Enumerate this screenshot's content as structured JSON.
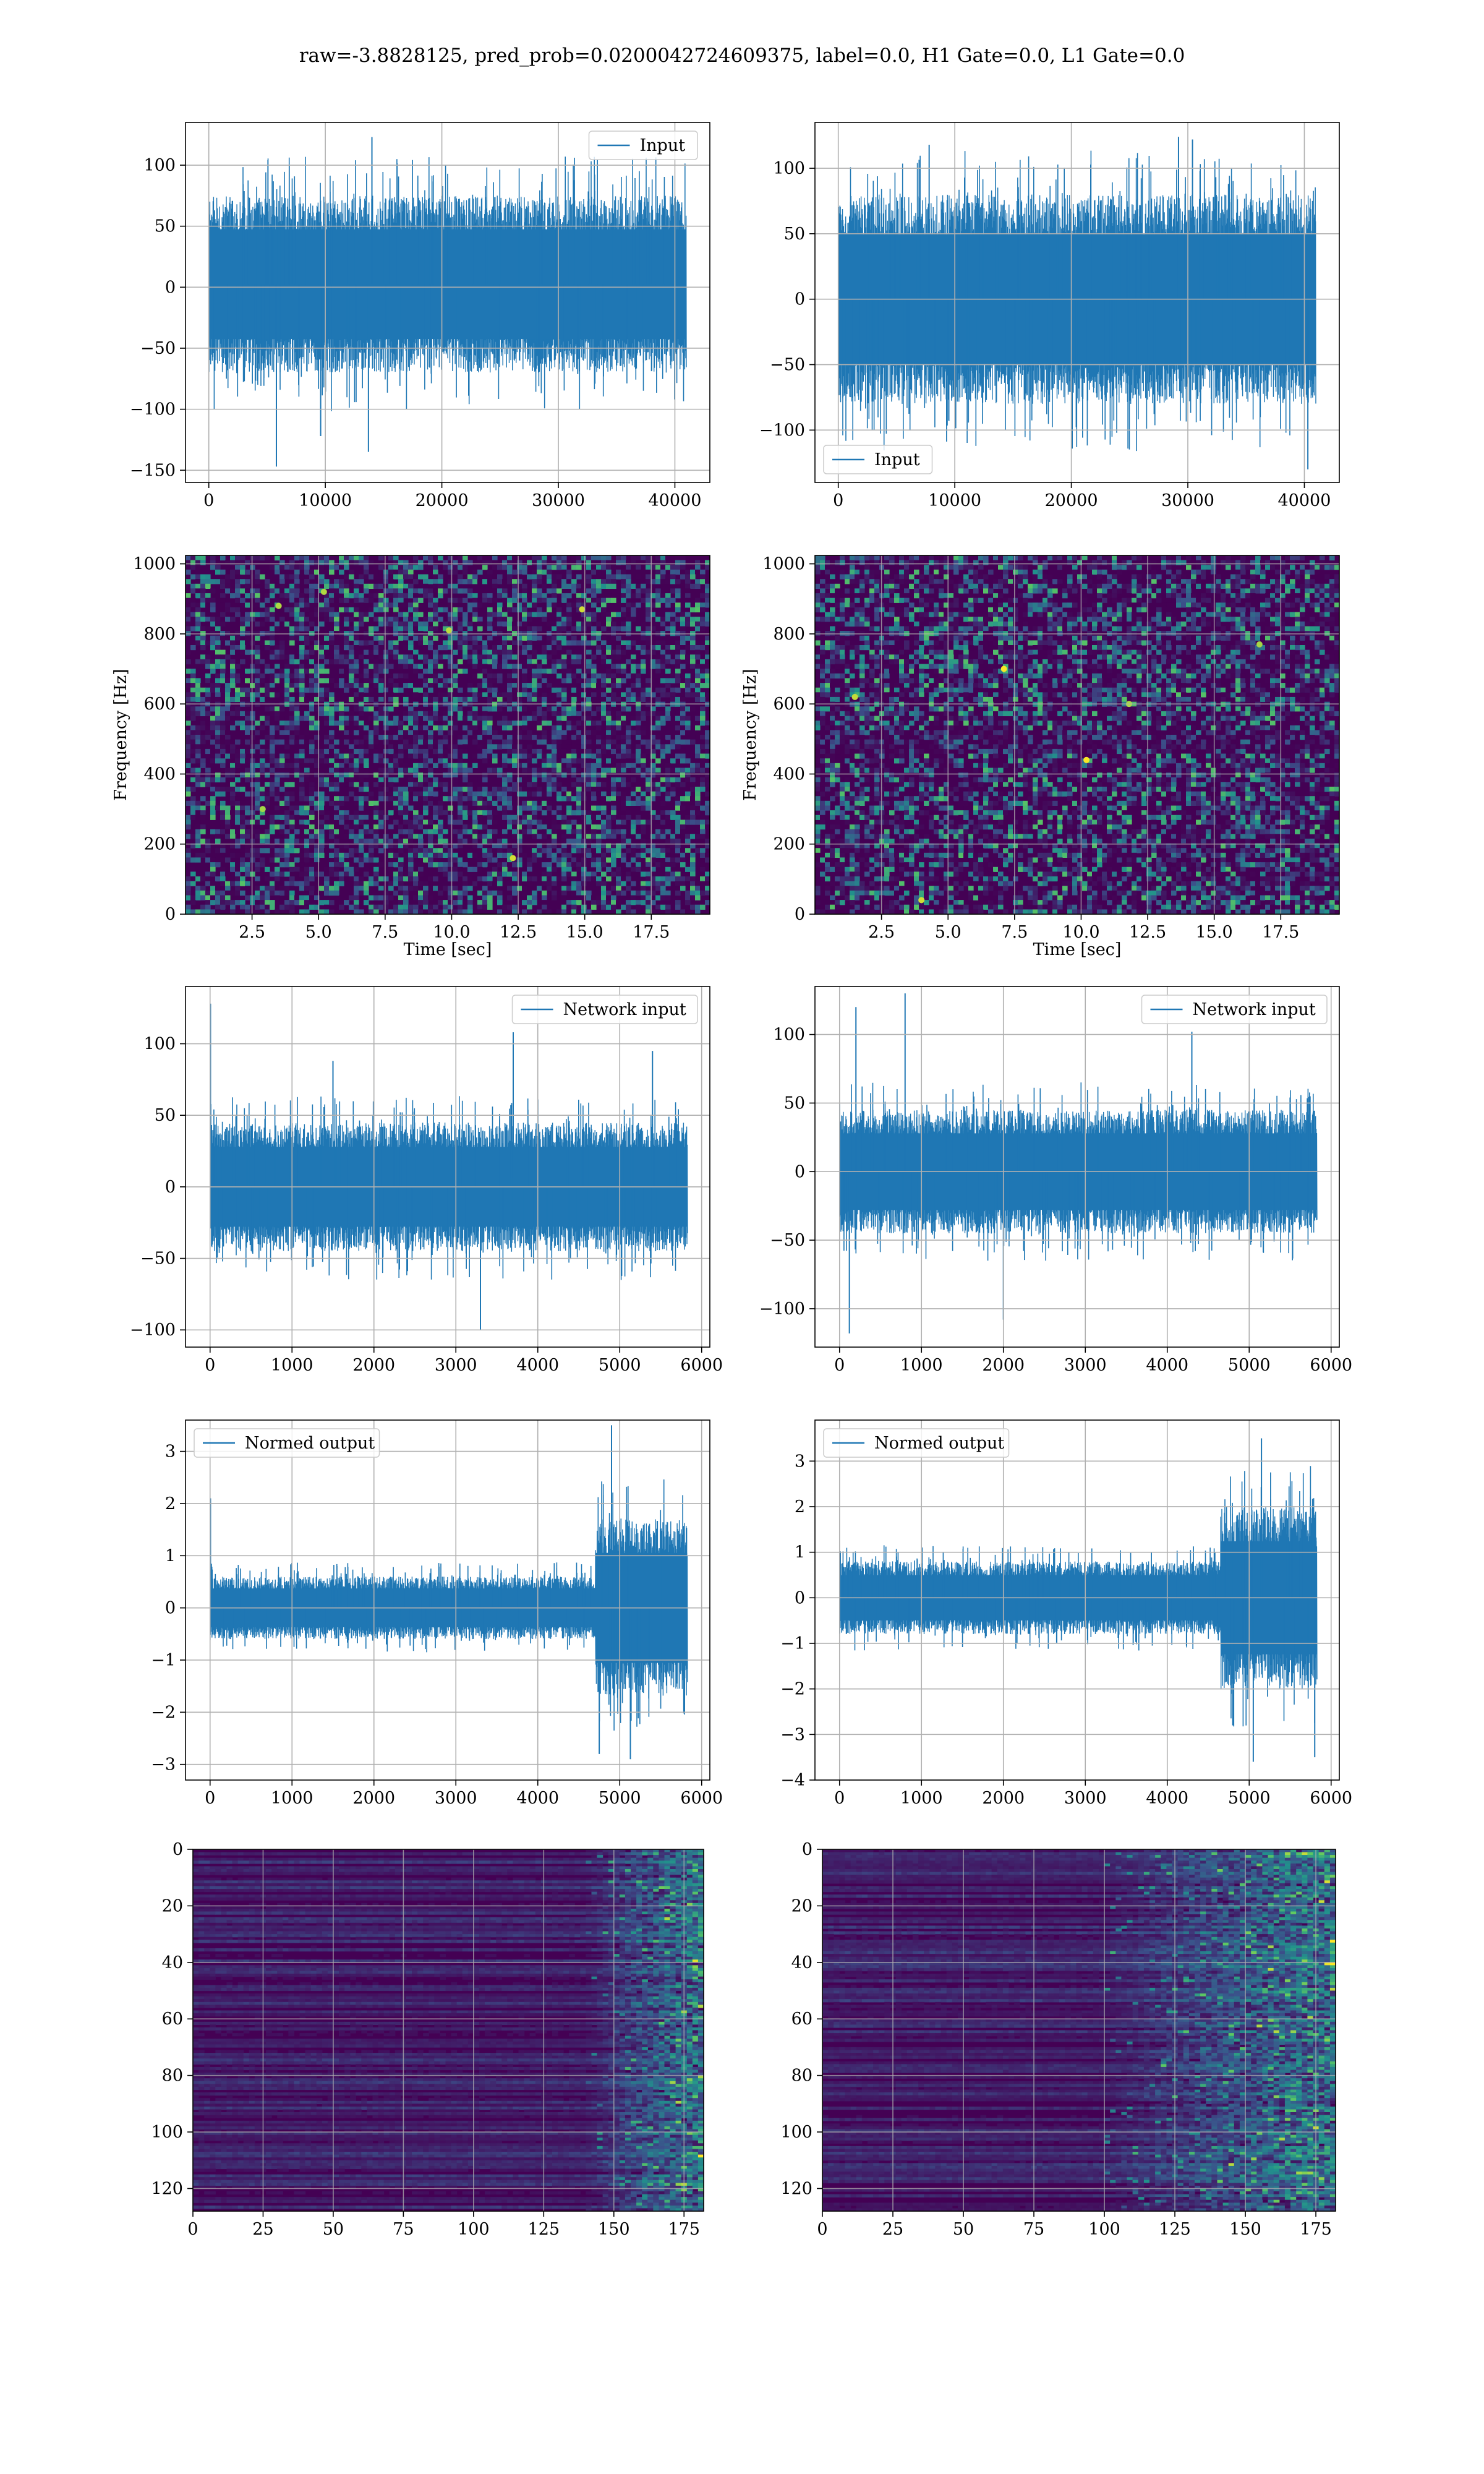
{
  "title": "raw=-3.8828125, pred_prob=0.0200042724609375, label=0.0, H1 Gate=0.0, L1 Gate=0.0",
  "colors": {
    "line": "#1f77b4",
    "grid": "#b0b0b0",
    "viridis_low": "#440154",
    "viridis_mid": "#21918c",
    "viridis_high": "#fde725"
  },
  "chart_data": [
    {
      "id": "p00",
      "type": "line",
      "title": "",
      "xlabel": "",
      "ylabel": "",
      "xlim": [
        -2000,
        43000
      ],
      "ylim": [
        -160,
        135
      ],
      "xticks": [
        0,
        10000,
        20000,
        30000,
        40000
      ],
      "yticks": [
        -150,
        -100,
        -50,
        0,
        50,
        100
      ],
      "xtick_labels": [
        "0",
        "10000",
        "20000",
        "30000",
        "40000"
      ],
      "ytick_labels": [
        "−150",
        "−100",
        "−50",
        "0",
        "50",
        "100"
      ],
      "legend": {
        "label": "Input",
        "loc": "upper right"
      },
      "series": [
        {
          "name": "Input",
          "n_samples": 40960,
          "x_range": [
            0,
            40960
          ],
          "typical_band": [
            -70,
            75
          ],
          "peak_max": 123,
          "peak_min": -147,
          "spikes": [
            [
              14000,
              123
            ],
            [
              5800,
              -147
            ],
            [
              13700,
              -135
            ],
            [
              9600,
              -122
            ]
          ]
        }
      ],
      "grid": true
    },
    {
      "id": "p01",
      "type": "line",
      "title": "",
      "xlabel": "",
      "ylabel": "",
      "xlim": [
        -2000,
        43000
      ],
      "ylim": [
        -140,
        135
      ],
      "xticks": [
        0,
        10000,
        20000,
        30000,
        40000
      ],
      "yticks": [
        -100,
        -50,
        0,
        50,
        100
      ],
      "xtick_labels": [
        "0",
        "10000",
        "20000",
        "30000",
        "40000"
      ],
      "ytick_labels": [
        "−100",
        "−50",
        "0",
        "50",
        "100"
      ],
      "legend": {
        "label": "Input",
        "loc": "lower left"
      },
      "series": [
        {
          "name": "Input",
          "n_samples": 40960,
          "x_range": [
            0,
            40960
          ],
          "typical_band": [
            -80,
            80
          ],
          "peak_max": 124,
          "peak_min": -130,
          "spikes": [
            [
              29200,
              124
            ],
            [
              30400,
              122
            ],
            [
              40300,
              -130
            ],
            [
              7800,
              118
            ]
          ]
        }
      ],
      "grid": true
    },
    {
      "id": "p10",
      "type": "heatmap",
      "title": "",
      "xlabel": "Time [sec]",
      "ylabel": "Frequency [Hz]",
      "xlim": [
        0,
        19.7
      ],
      "ylim": [
        0,
        1024
      ],
      "xticks": [
        2.5,
        5.0,
        7.5,
        10.0,
        12.5,
        15.0,
        17.5
      ],
      "yticks": [
        0,
        200,
        400,
        600,
        800,
        1000
      ],
      "xtick_labels": [
        "2.5",
        "5.0",
        "7.5",
        "10.0",
        "12.5",
        "15.0",
        "17.5"
      ],
      "ytick_labels": [
        "0",
        "200",
        "400",
        "600",
        "800",
        "1000"
      ],
      "colormap": "viridis",
      "grid": true,
      "hot_spots": [
        [
          3.5,
          880
        ],
        [
          14.9,
          870
        ],
        [
          5.2,
          920
        ],
        [
          12.3,
          160
        ],
        [
          2.9,
          300
        ],
        [
          9.9,
          810
        ]
      ]
    },
    {
      "id": "p11",
      "type": "heatmap",
      "title": "",
      "xlabel": "Time [sec]",
      "ylabel": "Frequency [Hz]",
      "xlim": [
        0,
        19.7
      ],
      "ylim": [
        0,
        1024
      ],
      "xticks": [
        2.5,
        5.0,
        7.5,
        10.0,
        12.5,
        15.0,
        17.5
      ],
      "yticks": [
        0,
        200,
        400,
        600,
        800,
        1000
      ],
      "xtick_labels": [
        "2.5",
        "5.0",
        "7.5",
        "10.0",
        "12.5",
        "15.0",
        "17.5"
      ],
      "ytick_labels": [
        "0",
        "200",
        "400",
        "600",
        "800",
        "1000"
      ],
      "colormap": "viridis",
      "grid": true,
      "hot_spots": [
        [
          16.7,
          770
        ],
        [
          11.8,
          600
        ],
        [
          7.1,
          700
        ],
        [
          1.5,
          620
        ],
        [
          4.0,
          40
        ],
        [
          10.2,
          440
        ]
      ]
    },
    {
      "id": "p20",
      "type": "line",
      "title": "",
      "xlabel": "",
      "ylabel": "",
      "xlim": [
        -300,
        6100
      ],
      "ylim": [
        -112,
        140
      ],
      "xticks": [
        0,
        1000,
        2000,
        3000,
        4000,
        5000,
        6000
      ],
      "yticks": [
        -100,
        -50,
        0,
        50,
        100
      ],
      "xtick_labels": [
        "0",
        "1000",
        "2000",
        "3000",
        "4000",
        "5000",
        "6000"
      ],
      "ytick_labels": [
        "−100",
        "−50",
        "0",
        "50",
        "100"
      ],
      "legend": {
        "label": "Network input",
        "loc": "upper right"
      },
      "series": [
        {
          "name": "Network input",
          "n_samples": 5824,
          "x_range": [
            0,
            5824
          ],
          "typical_band": [
            -45,
            45
          ],
          "peak_max": 128,
          "peak_min": -100,
          "spikes": [
            [
              5,
              128
            ],
            [
              3700,
              108
            ],
            [
              3300,
              -100
            ],
            [
              5400,
              95
            ],
            [
              1500,
              88
            ]
          ]
        }
      ],
      "grid": true
    },
    {
      "id": "p21",
      "type": "line",
      "title": "",
      "xlabel": "",
      "ylabel": "",
      "xlim": [
        -300,
        6100
      ],
      "ylim": [
        -128,
        135
      ],
      "xticks": [
        0,
        1000,
        2000,
        3000,
        4000,
        5000,
        6000
      ],
      "yticks": [
        -100,
        -50,
        0,
        50,
        100
      ],
      "xtick_labels": [
        "0",
        "1000",
        "2000",
        "3000",
        "4000",
        "5000",
        "6000"
      ],
      "ytick_labels": [
        "−100",
        "−50",
        "0",
        "50",
        "100"
      ],
      "legend": {
        "label": "Network input",
        "loc": "upper right"
      },
      "series": [
        {
          "name": "Network input",
          "n_samples": 5824,
          "x_range": [
            0,
            5824
          ],
          "typical_band": [
            -45,
            45
          ],
          "peak_max": 130,
          "peak_min": -120,
          "spikes": [
            [
              800,
              130
            ],
            [
              200,
              120
            ],
            [
              120,
              -118
            ],
            [
              2000,
              -108
            ],
            [
              4300,
              102
            ]
          ]
        }
      ],
      "grid": true
    },
    {
      "id": "p30",
      "type": "line",
      "title": "",
      "xlabel": "",
      "ylabel": "",
      "xlim": [
        -300,
        6100
      ],
      "ylim": [
        -3.3,
        3.6
      ],
      "xticks": [
        0,
        1000,
        2000,
        3000,
        4000,
        5000,
        6000
      ],
      "yticks": [
        -3,
        -2,
        -1,
        0,
        1,
        2,
        3
      ],
      "xtick_labels": [
        "0",
        "1000",
        "2000",
        "3000",
        "4000",
        "5000",
        "6000"
      ],
      "ytick_labels": [
        "−3",
        "−2",
        "−1",
        "0",
        "1",
        "2",
        "3"
      ],
      "legend": {
        "label": "Normed output",
        "loc": "upper left"
      },
      "series": [
        {
          "name": "Normed output",
          "n_samples": 5824,
          "x_range": [
            0,
            5824
          ],
          "typical_band": [
            -0.6,
            0.6
          ],
          "burst_start": 4700,
          "burst_band": [
            -1.6,
            1.8
          ],
          "peak_max": 3.5,
          "peak_min": -2.9,
          "spikes": [
            [
              5,
              2.1
            ],
            [
              4900,
              3.5
            ],
            [
              5130,
              -2.9
            ],
            [
              4750,
              -2.8
            ]
          ]
        }
      ],
      "grid": true
    },
    {
      "id": "p31",
      "type": "line",
      "title": "",
      "xlabel": "",
      "ylabel": "",
      "xlim": [
        -300,
        6100
      ],
      "ylim": [
        -4.0,
        3.9
      ],
      "xticks": [
        0,
        1000,
        2000,
        3000,
        4000,
        5000,
        6000
      ],
      "yticks": [
        -4,
        -3,
        -2,
        -1,
        0,
        1,
        2,
        3
      ],
      "xtick_labels": [
        "0",
        "1000",
        "2000",
        "3000",
        "4000",
        "5000",
        "6000"
      ],
      "ytick_labels": [
        "−4",
        "−3",
        "−2",
        "−1",
        "0",
        "1",
        "2",
        "3"
      ],
      "legend": {
        "label": "Normed output",
        "loc": "upper left"
      },
      "series": [
        {
          "name": "Normed output",
          "n_samples": 5824,
          "x_range": [
            0,
            5824
          ],
          "typical_band": [
            -0.8,
            0.8
          ],
          "burst_start": 4650,
          "burst_band": [
            -1.9,
            2.1
          ],
          "peak_max": 3.5,
          "peak_min": -3.6,
          "spikes": [
            [
              5150,
              3.5
            ],
            [
              5050,
              -3.6
            ],
            [
              5800,
              -3.5
            ],
            [
              4800,
              -2.8
            ]
          ]
        }
      ],
      "grid": true
    },
    {
      "id": "p40",
      "type": "heatmap",
      "title": "",
      "xlabel": "",
      "ylabel": "",
      "xlim": [
        0,
        182
      ],
      "ylim": [
        128,
        0
      ],
      "xticks": [
        0,
        25,
        50,
        75,
        100,
        125,
        150,
        175
      ],
      "yticks": [
        0,
        20,
        40,
        60,
        80,
        100,
        120
      ],
      "xtick_labels": [
        "0",
        "25",
        "50",
        "75",
        "100",
        "125",
        "150",
        "175"
      ],
      "ytick_labels": [
        "0",
        "20",
        "40",
        "60",
        "80",
        "100",
        "120"
      ],
      "colormap": "viridis",
      "grid": true,
      "n_rows": 128,
      "n_cols": 182,
      "activity_onset": 140
    },
    {
      "id": "p41",
      "type": "heatmap",
      "title": "",
      "xlabel": "",
      "ylabel": "",
      "xlim": [
        0,
        182
      ],
      "ylim": [
        128,
        0
      ],
      "xticks": [
        0,
        25,
        50,
        75,
        100,
        125,
        150,
        175
      ],
      "yticks": [
        0,
        20,
        40,
        60,
        80,
        100,
        120
      ],
      "xtick_labels": [
        "0",
        "25",
        "50",
        "75",
        "100",
        "125",
        "150",
        "175"
      ],
      "ytick_labels": [
        "0",
        "20",
        "40",
        "60",
        "80",
        "100",
        "120"
      ],
      "colormap": "viridis",
      "grid": true,
      "n_rows": 128,
      "n_cols": 182,
      "activity_onset": 100
    }
  ]
}
